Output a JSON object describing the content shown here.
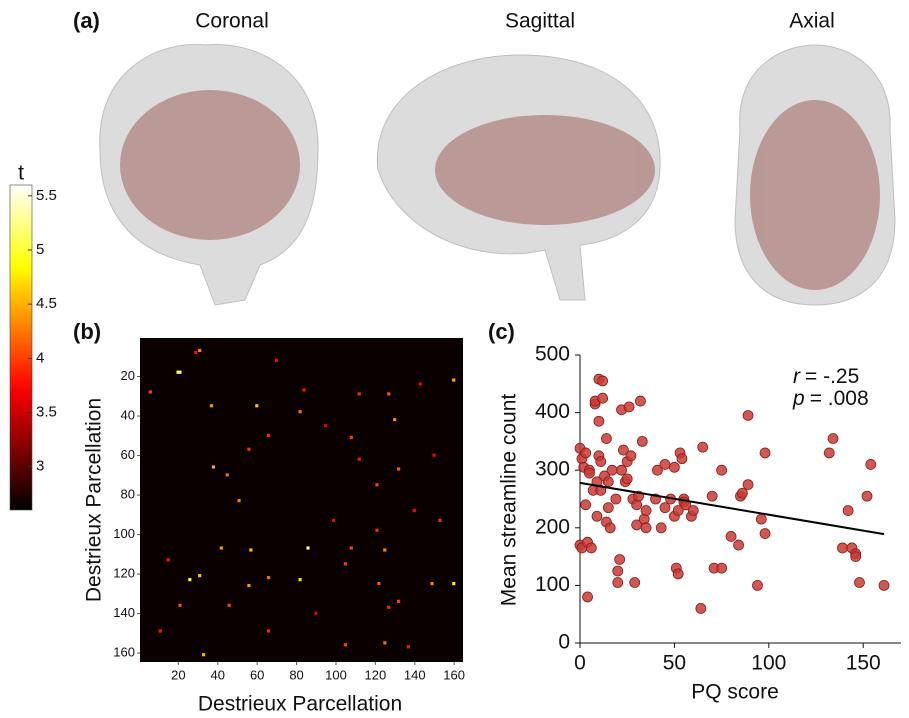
{
  "chart_data": [
    {
      "type": "brain-views",
      "panel": "(a)",
      "views": [
        "Coronal",
        "Sagittal",
        "Axial"
      ],
      "colorbar": {
        "label": "t",
        "colormap": "hot",
        "lim": [
          2.6,
          5.6
        ],
        "ticks": [
          3,
          3.5,
          4,
          4.5,
          5,
          5.5
        ]
      }
    },
    {
      "type": "heatmap",
      "panel": "(b)",
      "xlabel": "Destrieux Parcellation",
      "ylabel": "Destrieux Parcellation",
      "colormap": "hot",
      "clim": [
        2.6,
        5.6
      ],
      "xlim": [
        0.5,
        164.5
      ],
      "ylim": [
        0.5,
        164.5
      ],
      "xticks": [
        20,
        40,
        60,
        80,
        100,
        120,
        140,
        160
      ],
      "yticks": [
        20,
        40,
        60,
        80,
        100,
        120,
        140,
        160
      ],
      "cells": [
        [
          18,
          20,
          5.0
        ],
        [
          18,
          21,
          5.2
        ],
        [
          35,
          60,
          4.6
        ],
        [
          38,
          82,
          4.2
        ],
        [
          35,
          37,
          4.4
        ],
        [
          42,
          130,
          4.3
        ],
        [
          51,
          108,
          4.0
        ],
        [
          66,
          38,
          4.5
        ],
        [
          70,
          45,
          4.2
        ],
        [
          67,
          132,
          4.1
        ],
        [
          50,
          66,
          3.9
        ],
        [
          83,
          51,
          4.3
        ],
        [
          75,
          121,
          4.0
        ],
        [
          107,
          86,
          5.3
        ],
        [
          107,
          42,
          4.4
        ],
        [
          108,
          57,
          4.6
        ],
        [
          107,
          108,
          4.0
        ],
        [
          108,
          125,
          4.3
        ],
        [
          98,
          121,
          3.9
        ],
        [
          125,
          122,
          4.1
        ],
        [
          123,
          26,
          5.0
        ],
        [
          121,
          31,
          4.6
        ],
        [
          126,
          56,
          4.4
        ],
        [
          122,
          66,
          4.2
        ],
        [
          123,
          82,
          4.7
        ],
        [
          115,
          105,
          4.0
        ],
        [
          125,
          149,
          4.3
        ],
        [
          125,
          160,
          4.8
        ],
        [
          134,
          132,
          4.0
        ],
        [
          137,
          127,
          3.9
        ],
        [
          136,
          21,
          4.1
        ],
        [
          136,
          46,
          4.0
        ],
        [
          155,
          125,
          4.2
        ],
        [
          157,
          137,
          3.8
        ],
        [
          156,
          105,
          4.0
        ],
        [
          161,
          33,
          4.5
        ],
        [
          28,
          6,
          4.0
        ],
        [
          7,
          31,
          4.3
        ],
        [
          8,
          29,
          3.8
        ],
        [
          29,
          112,
          3.9
        ],
        [
          29,
          127,
          4.1
        ],
        [
          24,
          143,
          3.7
        ],
        [
          22,
          160,
          4.5
        ],
        [
          27,
          84,
          3.8
        ],
        [
          57,
          56,
          3.9
        ],
        [
          62,
          112,
          3.8
        ],
        [
          93,
          153,
          3.9
        ],
        [
          93,
          99,
          3.7
        ],
        [
          149,
          11,
          3.8
        ],
        [
          149,
          66,
          3.9
        ],
        [
          12,
          70,
          3.7
        ],
        [
          45,
          95,
          3.6
        ],
        [
          88,
          140,
          3.7
        ],
        [
          113,
          15,
          3.8
        ],
        [
          140,
          90,
          3.6
        ],
        [
          60,
          150,
          3.7
        ]
      ]
    },
    {
      "type": "scatter",
      "panel": "(c)",
      "xlabel": "PQ score",
      "ylabel": "Mean streamline count",
      "xlim": [
        0,
        170
      ],
      "ylim": [
        0,
        500
      ],
      "xticks": [
        0,
        50,
        100,
        150
      ],
      "yticks": [
        0,
        100,
        200,
        300,
        400,
        500
      ],
      "color": "#c93a35",
      "x": [
        0,
        0,
        1,
        1,
        2,
        3,
        3,
        4,
        4,
        5,
        5,
        6,
        7,
        8,
        8,
        9,
        9,
        10,
        10,
        10,
        11,
        11,
        12,
        12,
        13,
        14,
        14,
        15,
        15,
        16,
        17,
        19,
        20,
        20,
        21,
        22,
        22,
        23,
        24,
        25,
        25,
        26,
        27,
        28,
        29,
        30,
        30,
        31,
        32,
        33,
        34,
        35,
        35,
        40,
        41,
        43,
        45,
        45,
        48,
        50,
        50,
        51,
        52,
        52,
        53,
        54,
        55,
        55,
        56,
        59,
        60,
        64,
        65,
        70,
        71,
        75,
        75,
        80,
        84,
        85,
        86,
        89,
        89,
        94,
        96,
        98,
        98,
        132,
        134,
        139,
        142,
        144,
        146,
        146,
        148,
        152,
        154,
        161
      ],
      "y": [
        338,
        170,
        165,
        320,
        305,
        330,
        240,
        175,
        80,
        300,
        295,
        165,
        265,
        415,
        420,
        280,
        220,
        458,
        385,
        325,
        315,
        265,
        455,
        425,
        290,
        355,
        210,
        235,
        280,
        200,
        300,
        250,
        125,
        105,
        145,
        405,
        300,
        335,
        280,
        285,
        315,
        410,
        325,
        250,
        105,
        205,
        240,
        255,
        420,
        350,
        215,
        230,
        200,
        250,
        300,
        200,
        235,
        310,
        250,
        220,
        305,
        130,
        230,
        120,
        330,
        320,
        250,
        245,
        240,
        220,
        230,
        60,
        340,
        255,
        130,
        130,
        300,
        185,
        170,
        255,
        260,
        275,
        395,
        100,
        215,
        330,
        190,
        330,
        355,
        165,
        230,
        165,
        155,
        150,
        105,
        255,
        310,
        100
      ],
      "fit": {
        "x": [
          0,
          161
        ],
        "y": [
          278,
          189
        ]
      },
      "annotations": [
        {
          "symbol": "r",
          "text": "= -.25"
        },
        {
          "symbol": "p",
          "text": "= .008"
        }
      ]
    }
  ]
}
